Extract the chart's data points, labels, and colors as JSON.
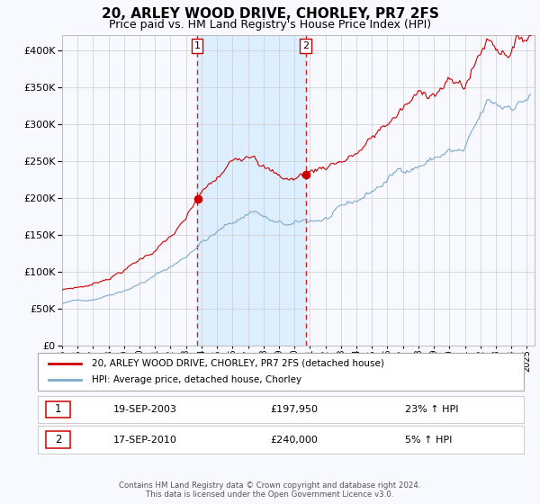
{
  "title": "20, ARLEY WOOD DRIVE, CHORLEY, PR7 2FS",
  "subtitle": "Price paid vs. HM Land Registry's House Price Index (HPI)",
  "ylim": [
    0,
    420000
  ],
  "yticks": [
    0,
    50000,
    100000,
    150000,
    200000,
    250000,
    300000,
    350000,
    400000
  ],
  "xlim_start": 1995.0,
  "xlim_end": 2025.5,
  "sale1_date": 2003.72,
  "sale1_price": 197950,
  "sale1_label": "1",
  "sale1_info": "19-SEP-2003",
  "sale1_amount": "£197,950",
  "sale1_hpi": "23% ↑ HPI",
  "sale2_date": 2010.72,
  "sale2_price": 240000,
  "sale2_label": "2",
  "sale2_info": "17-SEP-2010",
  "sale2_amount": "£240,000",
  "sale2_hpi": "5% ↑ HPI",
  "legend_line1": "20, ARLEY WOOD DRIVE, CHORLEY, PR7 2FS (detached house)",
  "legend_line2": "HPI: Average price, detached house, Chorley",
  "line1_color": "#cc0000",
  "line2_color": "#7faacc",
  "shade_color": "#ddeeff",
  "footer1": "Contains HM Land Registry data © Crown copyright and database right 2024.",
  "footer2": "This data is licensed under the Open Government Licence v3.0.",
  "bg_color": "#f8f8ff",
  "grid_color": "#cccccc",
  "title_fontsize": 11,
  "subtitle_fontsize": 9,
  "axis_fontsize": 8
}
